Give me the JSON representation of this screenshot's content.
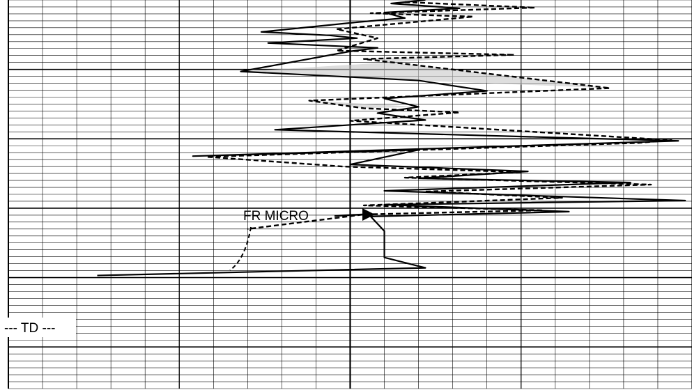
{
  "chart_data": {
    "type": "line",
    "title": "",
    "xlabel": "",
    "ylabel": "",
    "x_axis": {
      "scale": "linear",
      "range": [
        0,
        100
      ],
      "minor_divisions": 20,
      "major_divisions": 4
    },
    "y_axis": {
      "direction": "depth-increasing-downward",
      "range": [
        0,
        56
      ],
      "minor_divisions": 56,
      "major_every": 10
    },
    "grid": true,
    "colors": {
      "curves": "#000000",
      "grid": "#000000",
      "fill": "#c8c8c8"
    },
    "annotations": {
      "fr_micro": "FR MICRO",
      "td": "--- TD ---"
    },
    "series": [
      {
        "style": "solid",
        "points": [
          [
            61,
            0
          ],
          [
            56,
            0.5
          ],
          [
            66,
            1.2
          ],
          [
            55,
            1.8
          ],
          [
            58,
            2.6
          ],
          [
            51,
            3.2
          ],
          [
            37,
            4.6
          ],
          [
            47,
            5.1
          ],
          [
            51,
            5.5
          ],
          [
            38,
            6.2
          ],
          [
            54,
            6.9
          ],
          [
            50,
            7.4
          ],
          [
            34,
            10.3
          ],
          [
            60,
            11.6
          ],
          [
            70,
            13.1
          ],
          [
            55,
            14.2
          ],
          [
            60,
            15.4
          ],
          [
            54,
            16.3
          ],
          [
            61,
            17.3
          ],
          [
            39,
            18.7
          ],
          [
            98,
            20.3
          ],
          [
            85,
            20.7
          ],
          [
            27,
            22.5
          ],
          [
            60,
            21.6
          ],
          [
            50,
            23.7
          ],
          [
            76,
            24.7
          ],
          [
            60,
            25.7
          ],
          [
            91,
            26.3
          ],
          [
            55,
            27.5
          ],
          [
            99,
            28.9
          ],
          [
            55,
            29.5
          ],
          [
            82,
            30.5
          ],
          [
            53,
            31.2
          ],
          [
            55,
            33.3
          ],
          [
            55,
            37.1
          ],
          [
            61,
            38.6
          ],
          [
            13,
            39.7
          ]
        ]
      },
      {
        "style": "dashed",
        "points": [
          [
            58,
            0.3
          ],
          [
            77,
            1.1
          ],
          [
            53,
            1.9
          ],
          [
            68,
            2.4
          ],
          [
            48,
            4.2
          ],
          [
            54,
            5.5
          ],
          [
            48,
            7.3
          ],
          [
            74,
            7.9
          ],
          [
            52,
            8.5
          ],
          [
            88,
            12.7
          ],
          [
            44,
            14.5
          ],
          [
            52,
            15.6
          ],
          [
            66,
            16.2
          ],
          [
            50,
            17.4
          ],
          [
            97,
            20.2
          ],
          [
            92,
            20.6
          ],
          [
            29,
            22.6
          ],
          [
            49,
            24.0
          ],
          [
            75,
            24.8
          ],
          [
            58,
            25.6
          ],
          [
            94,
            26.6
          ],
          [
            61,
            27.6
          ],
          [
            81,
            28.5
          ],
          [
            52,
            29.6
          ],
          [
            78,
            30.3
          ],
          [
            52,
            30.9
          ],
          [
            35,
            33.0
          ]
        ]
      }
    ]
  }
}
